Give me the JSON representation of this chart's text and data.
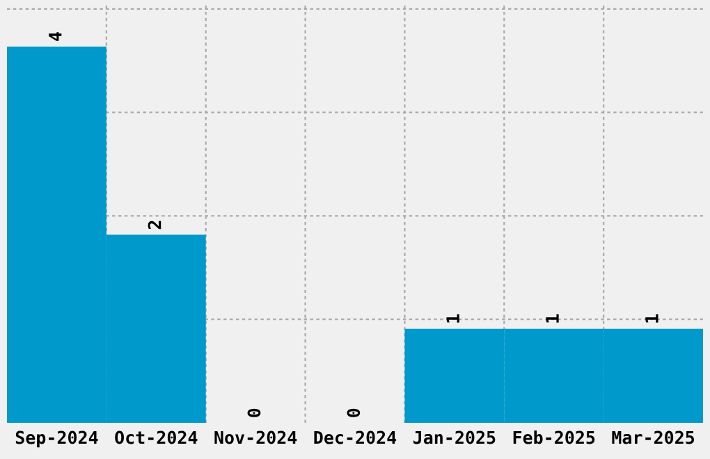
{
  "chart_data": {
    "type": "bar",
    "categories": [
      "Sep-2024",
      "Oct-2024",
      "Nov-2024",
      "Dec-2024",
      "Jan-2025",
      "Feb-2025",
      "Mar-2025"
    ],
    "values": [
      4,
      2,
      0,
      0,
      1,
      1,
      1
    ],
    "color": "#0099cc",
    "ylim": [
      0,
      4.45
    ],
    "yticks": [
      {
        "value": 1.1,
        "label": null
      },
      {
        "value": 2.2,
        "label": null
      },
      {
        "value": 3.3,
        "label": null
      },
      {
        "value": 4.4,
        "label": null
      }
    ],
    "tick_labels": "x",
    "data_labels": true,
    "grid": true
  }
}
